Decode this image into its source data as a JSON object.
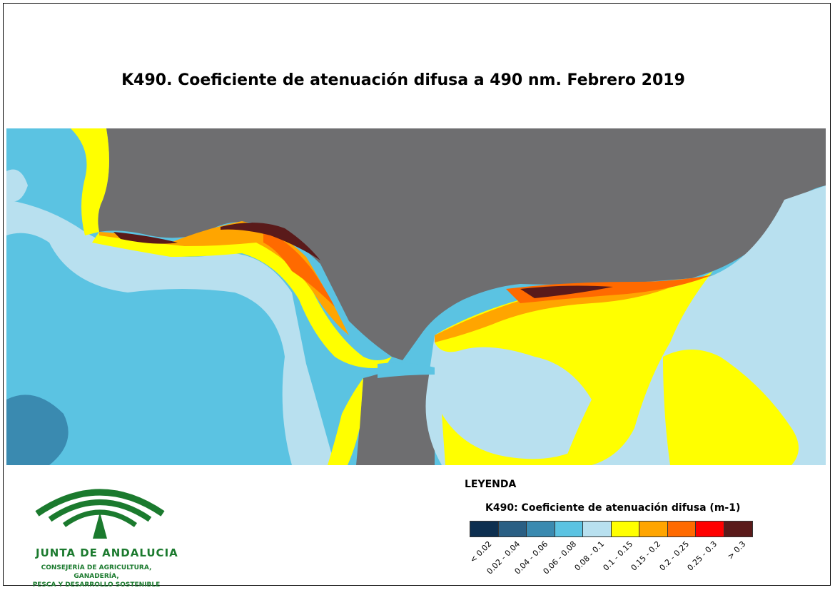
{
  "title": "K490. Coeficiente de atenuación difusa a 490 nm. Febrero 2019",
  "legend": {
    "heading": "LEYENDA",
    "subtitle": "K490: Coeficiente de atenuación difusa (m-1)",
    "classes": [
      {
        "label": "< 0.02",
        "color": "#0d2f50"
      },
      {
        "label": "0.02 - 0.04",
        "color": "#2a5f84"
      },
      {
        "label": "0.04 - 0.06",
        "color": "#3a8ab0"
      },
      {
        "label": "0.06 - 0.08",
        "color": "#5bc3e2"
      },
      {
        "label": "0.08 - 0.1",
        "color": "#b8e0ef"
      },
      {
        "label": "0.1 - 0.15",
        "color": "#ffff00"
      },
      {
        "label": "0.15 - 0.2",
        "color": "#ffa500"
      },
      {
        "label": "0.2 - 0.25",
        "color": "#ff6a00"
      },
      {
        "label": "0.25 - 0.3",
        "color": "#ff0000"
      },
      {
        "label": "> 0.3",
        "color": "#5a1a1a"
      }
    ]
  },
  "land_color": "#6e6e70",
  "logo": {
    "name": "JUNTA DE ANDALUCIA",
    "dept_line1": "CONSEJERÍA DE AGRICULTURA, GANADERÍA,",
    "dept_line2": "PESCA Y DESARROLLO SOSTENIBLE",
    "color": "#1b7a2e"
  }
}
